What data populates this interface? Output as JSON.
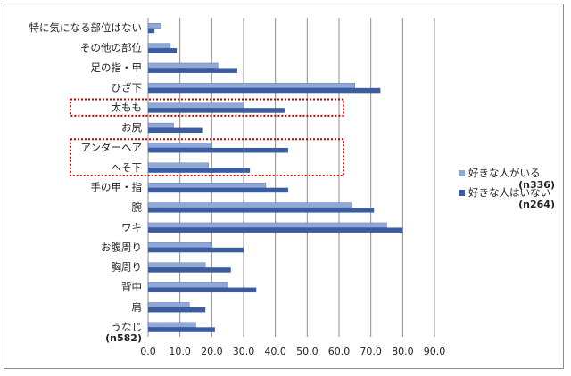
{
  "chart_data": {
    "type": "bar",
    "orientation": "horizontal",
    "categories": [
      "特に気になる部位はない",
      "その他の部位",
      "足の指・甲",
      "ひざ下",
      "太もも",
      "お尻",
      "アンダーヘア",
      "へそ下",
      "手の甲・指",
      "腕",
      "ワキ",
      "お腹周り",
      "胸周り",
      "背中",
      "肩",
      "うなじ"
    ],
    "series": [
      {
        "name": "好きな人がいる",
        "note": "(n336)",
        "color": "#8fa8d8",
        "values": [
          4,
          7,
          22,
          65,
          30,
          8,
          20,
          19,
          37,
          64,
          75,
          20,
          18,
          25,
          13,
          15
        ]
      },
      {
        "name": "好きな人はいない",
        "note": "(n264)",
        "color": "#3b5c9e",
        "values": [
          2,
          9,
          28,
          73,
          43,
          17,
          44,
          32,
          44,
          71,
          80,
          30,
          26,
          34,
          18,
          21
        ]
      }
    ],
    "xlim": [
      0,
      90
    ],
    "xticks": [
      "0.0",
      "10.0",
      "20.0",
      "30.0",
      "40.0",
      "50.0",
      "60.0",
      "70.0",
      "80.0",
      "90.0"
    ],
    "grid": "vertical",
    "legend": "right",
    "sample_note": "(n582)",
    "highlight_boxes": [
      [
        "太もも"
      ],
      [
        "アンダーヘア",
        "へそ下"
      ]
    ],
    "highlight_color": "#cc0000"
  }
}
